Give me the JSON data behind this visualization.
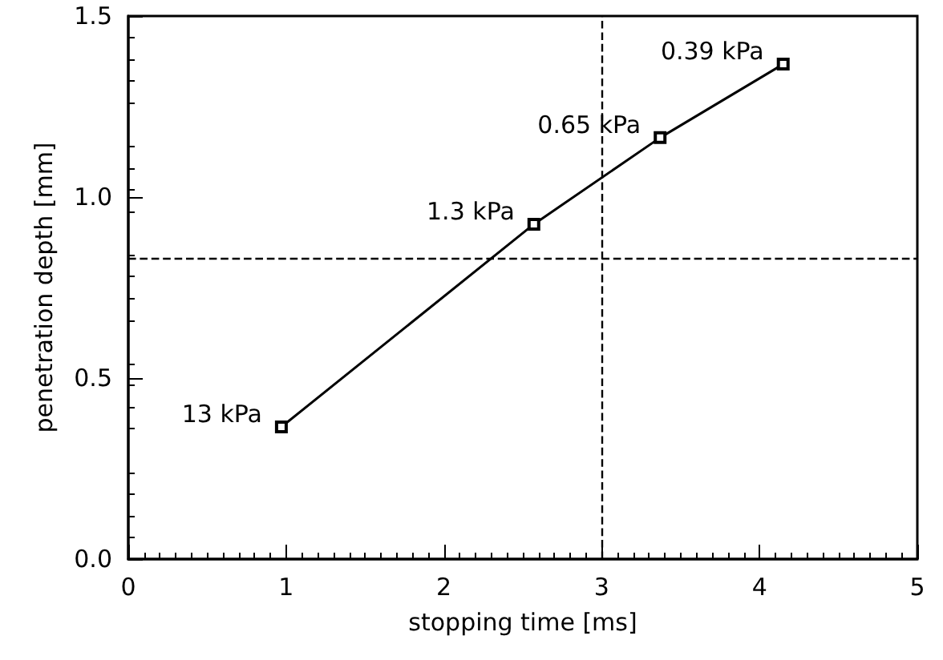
{
  "chart_data": {
    "type": "line",
    "xlabel": "stopping time [ms]",
    "ylabel": "penetration depth [mm]",
    "x": [
      0.97,
      2.57,
      3.37,
      4.15
    ],
    "series": [
      {
        "color": "#000000",
        "values": [
          0.365,
          0.925,
          1.164,
          1.367
        ]
      }
    ],
    "marker": "square",
    "line_style": "solid",
    "xlim": [
      0,
      5
    ],
    "xticks": [
      0,
      1,
      2,
      3,
      4,
      5
    ],
    "ylim": [
      0,
      1.5
    ],
    "yticks": [
      {
        "value": 0,
        "label": "0.0"
      },
      {
        "value": 0.5,
        "label": "0.5"
      },
      {
        "value": 1,
        "label": "1.0"
      },
      {
        "value": 1.5,
        "label": "1.5"
      }
    ],
    "ref_lines": [
      {
        "axis": "x",
        "value": 3,
        "line_style": "dashed",
        "color": "#000000"
      },
      {
        "axis": "y",
        "value": 0.83,
        "line_style": "dashed",
        "color": "#000000"
      }
    ],
    "annotations": [
      {
        "text": "13 kPa",
        "x": 0.97,
        "y": 0.365
      },
      {
        "text": "1.3 kPa",
        "x": 2.57,
        "y": 0.925
      },
      {
        "text": "0.65 kPa",
        "x": 3.37,
        "y": 1.164
      },
      {
        "text": "0.39 kPa",
        "x": 4.15,
        "y": 1.367
      }
    ]
  }
}
